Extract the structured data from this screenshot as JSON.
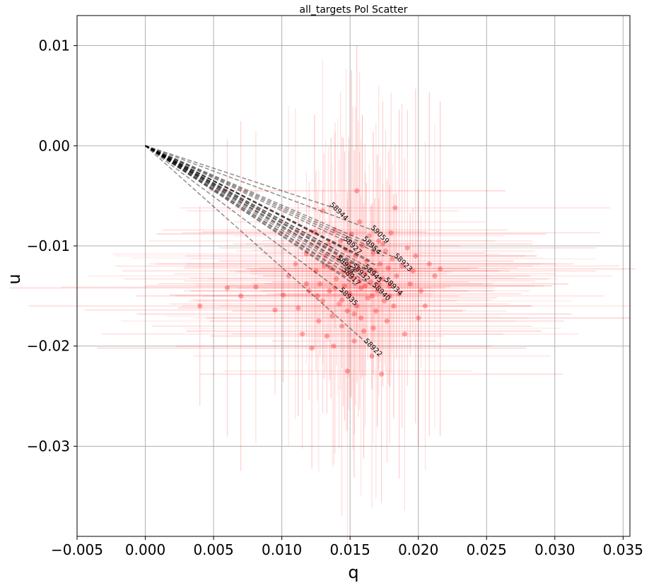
{
  "chart_data": {
    "type": "scatter",
    "title": "all_targets Pol Scatter",
    "xlabel": "q",
    "ylabel": "u",
    "xlim": [
      -0.005,
      0.0355
    ],
    "ylim": [
      -0.039,
      0.013
    ],
    "x_ticks": [
      -0.005,
      0.0,
      0.005,
      0.01,
      0.015,
      0.02,
      0.025,
      0.03,
      0.035
    ],
    "x_tick_labels": [
      "−0.005",
      "0.000",
      "0.005",
      "0.010",
      "0.015",
      "0.020",
      "0.025",
      "0.030",
      "0.035"
    ],
    "y_ticks": [
      0.01,
      0.0,
      -0.01,
      -0.02,
      -0.03
    ],
    "y_tick_labels": [
      "0.01",
      "0.00",
      "−0.01",
      "−0.02",
      "−0.03"
    ],
    "grid": true,
    "colors": {
      "points": "#ff0000",
      "error_bars": "#ff0000",
      "vectors": "#000000",
      "grid": "#b0b0b0",
      "axes": "#000000"
    },
    "labeled_vectors": [
      {
        "name": "58944",
        "q": 0.0138,
        "u": -0.0062
      },
      {
        "name": "59059",
        "q": 0.0168,
        "u": -0.0085
      },
      {
        "name": "58954",
        "q": 0.0162,
        "u": -0.0096
      },
      {
        "name": "58923",
        "q": 0.0185,
        "u": -0.0113
      },
      {
        "name": "58927",
        "q": 0.0148,
        "u": -0.0096
      },
      {
        "name": "58944b",
        "q": 0.0143,
        "u": -0.0115
      },
      {
        "name": "58917",
        "q": 0.0147,
        "u": -0.0127
      },
      {
        "name": "58932",
        "q": 0.0154,
        "u": -0.0123
      },
      {
        "name": "58945",
        "q": 0.0163,
        "u": -0.0124
      },
      {
        "name": "58934",
        "q": 0.0178,
        "u": -0.0137
      },
      {
        "name": "58940",
        "q": 0.0169,
        "u": -0.0142
      },
      {
        "name": "58935",
        "q": 0.0145,
        "u": -0.0147
      },
      {
        "name": "58922",
        "q": 0.0163,
        "u": -0.0198
      }
    ],
    "vector_label_texts": [
      "58944",
      "59059",
      "58954",
      "58923",
      "58927",
      "58944",
      "58917",
      "58932",
      "58945",
      "58934",
      "58940",
      "58935",
      "58922"
    ],
    "extra_vectors": [
      [
        0.015,
        -0.0106
      ],
      [
        0.0158,
        -0.011
      ],
      [
        0.014,
        -0.0104
      ],
      [
        0.0152,
        -0.0118
      ],
      [
        0.016,
        -0.0131
      ],
      [
        0.017,
        -0.012
      ],
      [
        0.0135,
        -0.0118
      ],
      [
        0.0155,
        -0.014
      ],
      [
        0.0165,
        -0.0115
      ],
      [
        0.0172,
        -0.0128
      ],
      [
        0.0148,
        -0.0132
      ],
      [
        0.0175,
        -0.011
      ]
    ],
    "points": [
      [
        0.004,
        -0.016
      ],
      [
        0.006,
        -0.0142
      ],
      [
        0.007,
        -0.015
      ],
      [
        0.0081,
        -0.0141
      ],
      [
        0.0095,
        -0.0164
      ],
      [
        0.0101,
        -0.0149
      ],
      [
        0.0105,
        -0.013
      ],
      [
        0.011,
        -0.0118
      ],
      [
        0.0112,
        -0.0162
      ],
      [
        0.0115,
        -0.0188
      ],
      [
        0.0118,
        -0.0108
      ],
      [
        0.012,
        -0.0145
      ],
      [
        0.0122,
        -0.0202
      ],
      [
        0.0124,
        -0.0086
      ],
      [
        0.0125,
        -0.0125
      ],
      [
        0.0127,
        -0.0175
      ],
      [
        0.0128,
        -0.0138
      ],
      [
        0.013,
        -0.0065
      ],
      [
        0.013,
        -0.0155
      ],
      [
        0.0132,
        -0.011
      ],
      [
        0.0133,
        -0.019
      ],
      [
        0.0134,
        -0.0098
      ],
      [
        0.0135,
        -0.0145
      ],
      [
        0.0136,
        -0.0122
      ],
      [
        0.0137,
        -0.017
      ],
      [
        0.0138,
        -0.02
      ],
      [
        0.0139,
        -0.0084
      ],
      [
        0.014,
        -0.0133
      ],
      [
        0.0141,
        -0.0112
      ],
      [
        0.0142,
        -0.0158
      ],
      [
        0.0143,
        -0.0095
      ],
      [
        0.0144,
        -0.018
      ],
      [
        0.0145,
        -0.0126
      ],
      [
        0.0146,
        -0.014
      ],
      [
        0.0147,
        -0.0104
      ],
      [
        0.0148,
        -0.0165
      ],
      [
        0.0148,
        -0.0225
      ],
      [
        0.0149,
        -0.0118
      ],
      [
        0.015,
        -0.0148
      ],
      [
        0.0151,
        -0.0088
      ],
      [
        0.0152,
        -0.0132
      ],
      [
        0.0153,
        -0.0195
      ],
      [
        0.0154,
        -0.011
      ],
      [
        0.0155,
        -0.0045
      ],
      [
        0.0155,
        -0.016
      ],
      [
        0.0156,
        -0.0123
      ],
      [
        0.0157,
        -0.0076
      ],
      [
        0.0158,
        -0.0142
      ],
      [
        0.0159,
        -0.01
      ],
      [
        0.016,
        -0.0185
      ],
      [
        0.0161,
        -0.0128
      ],
      [
        0.0162,
        -0.0115
      ],
      [
        0.0163,
        -0.0152
      ],
      [
        0.0164,
        -0.009
      ],
      [
        0.0165,
        -0.0136
      ],
      [
        0.0166,
        -0.021
      ],
      [
        0.0167,
        -0.0107
      ],
      [
        0.0168,
        -0.0125
      ],
      [
        0.0169,
        -0.0165
      ],
      [
        0.017,
        -0.0145
      ],
      [
        0.0171,
        -0.0095
      ],
      [
        0.0172,
        -0.0118
      ],
      [
        0.0173,
        -0.0228
      ],
      [
        0.0174,
        -0.0133
      ],
      [
        0.0175,
        -0.0155
      ],
      [
        0.0176,
        -0.0105
      ],
      [
        0.0177,
        -0.0175
      ],
      [
        0.0178,
        -0.0122
      ],
      [
        0.0179,
        -0.014
      ],
      [
        0.018,
        -0.0087
      ],
      [
        0.0181,
        -0.0113
      ],
      [
        0.0182,
        -0.016
      ],
      [
        0.0183,
        -0.0062
      ],
      [
        0.0184,
        -0.013
      ],
      [
        0.0186,
        -0.0148
      ],
      [
        0.0188,
        -0.012
      ],
      [
        0.019,
        -0.0188
      ],
      [
        0.0192,
        -0.0102
      ],
      [
        0.0194,
        -0.0138
      ],
      [
        0.0196,
        -0.0125
      ],
      [
        0.0198,
        -0.011
      ],
      [
        0.02,
        -0.0172
      ],
      [
        0.0202,
        -0.0145
      ],
      [
        0.0205,
        -0.016
      ],
      [
        0.0208,
        -0.0118
      ],
      [
        0.0212,
        -0.013
      ],
      [
        0.0216,
        -0.0123
      ],
      [
        0.0118,
        -0.0138
      ],
      [
        0.0126,
        -0.015
      ],
      [
        0.0144,
        -0.0154
      ],
      [
        0.0158,
        -0.0172
      ],
      [
        0.0166,
        -0.015
      ],
      [
        0.0174,
        -0.0098
      ],
      [
        0.0139,
        -0.0142
      ],
      [
        0.0161,
        -0.014
      ],
      [
        0.0149,
        -0.0128
      ],
      [
        0.0167,
        -0.0182
      ],
      [
        0.0153,
        -0.0168
      ],
      [
        0.0171,
        -0.0138
      ],
      [
        0.0131,
        -0.012
      ],
      [
        0.0179,
        -0.015
      ],
      [
        0.0157,
        -0.0135
      ]
    ]
  }
}
